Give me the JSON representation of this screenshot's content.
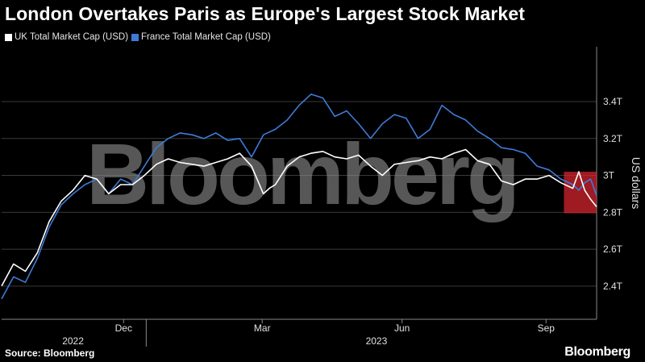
{
  "colors": {
    "background": "#000000",
    "uk": "#ffffff",
    "france": "#3e7bd8",
    "highlight": "#d9262e",
    "grid": "#3a3a3a",
    "axis_text": "#e0e0e0",
    "watermark": "#8c8c8c"
  },
  "footer": {
    "source": "Source: Bloomberg",
    "brand": "Bloomberg"
  },
  "chart_data": {
    "type": "line",
    "title": "London Overtakes Paris as Europe's Largest Stock Market",
    "ylabel": "US dollars",
    "ylim": [
      2.22,
      3.68
    ],
    "yticks": [
      {
        "value": 2.4,
        "label": "2.4T"
      },
      {
        "value": 2.6,
        "label": "2.6T"
      },
      {
        "value": 2.8,
        "label": "2.8T"
      },
      {
        "value": 3.0,
        "label": "3T"
      },
      {
        "value": 3.2,
        "label": "3.2T"
      },
      {
        "value": 3.4,
        "label": "3.4T"
      }
    ],
    "xlim": [
      0,
      100
    ],
    "xticks": [
      {
        "value": 20.5,
        "label": "Dec"
      },
      {
        "value": 43.8,
        "label": "Mar"
      },
      {
        "value": 67.3,
        "label": "Jun"
      },
      {
        "value": 91.5,
        "label": "Sep"
      }
    ],
    "year_labels": [
      {
        "value": 12,
        "label": "2022"
      },
      {
        "value": 63,
        "label": "2023"
      }
    ],
    "year_divider": 24.3,
    "highlight": {
      "x_start": 94.5,
      "x_end": 100,
      "y_start": 2.795,
      "y_end": 3.02
    },
    "watermark": "Bloomberg",
    "legend_position": "top-left",
    "series": [
      {
        "name": "UK Total Market Cap (USD)",
        "x": [
          0,
          2,
          4,
          6,
          8,
          10,
          12,
          14,
          16,
          18,
          20,
          22,
          24,
          26,
          28,
          30,
          32,
          34,
          36,
          38,
          40,
          42,
          44,
          45,
          46,
          48,
          50,
          52,
          54,
          56,
          58,
          60,
          62,
          64,
          66,
          68,
          70,
          72,
          74,
          76,
          78,
          80,
          82,
          84,
          86,
          88,
          90,
          92,
          94,
          96,
          97,
          98,
          99,
          100
        ],
        "values": [
          2.4,
          2.52,
          2.48,
          2.58,
          2.75,
          2.86,
          2.92,
          3.0,
          2.98,
          2.9,
          2.95,
          2.95,
          3.0,
          3.06,
          3.09,
          3.07,
          3.06,
          3.05,
          3.07,
          3.09,
          3.12,
          3.05,
          2.9,
          2.93,
          2.95,
          3.05,
          3.1,
          3.12,
          3.13,
          3.1,
          3.09,
          3.11,
          3.05,
          3.0,
          3.06,
          3.07,
          3.08,
          3.1,
          3.09,
          3.12,
          3.14,
          3.08,
          3.06,
          2.97,
          2.95,
          2.98,
          2.98,
          3.0,
          2.96,
          2.93,
          3.02,
          2.92,
          2.87,
          2.83
        ]
      },
      {
        "name": "France Total Market Cap (USD)",
        "x": [
          0,
          2,
          4,
          6,
          8,
          10,
          12,
          14,
          16,
          18,
          20,
          22,
          24,
          26,
          28,
          30,
          32,
          34,
          36,
          38,
          40,
          42,
          44,
          46,
          48,
          50,
          52,
          54,
          56,
          58,
          60,
          62,
          64,
          66,
          68,
          70,
          72,
          74,
          76,
          78,
          80,
          82,
          84,
          86,
          88,
          90,
          92,
          94,
          96,
          97,
          98,
          99,
          100
        ],
        "values": [
          2.33,
          2.45,
          2.42,
          2.55,
          2.72,
          2.84,
          2.9,
          2.95,
          2.98,
          2.9,
          2.98,
          2.95,
          3.05,
          3.15,
          3.2,
          3.23,
          3.22,
          3.2,
          3.23,
          3.19,
          3.2,
          3.1,
          3.22,
          3.25,
          3.3,
          3.38,
          3.44,
          3.42,
          3.32,
          3.35,
          3.28,
          3.2,
          3.28,
          3.33,
          3.31,
          3.2,
          3.25,
          3.38,
          3.33,
          3.3,
          3.24,
          3.2,
          3.15,
          3.14,
          3.12,
          3.05,
          3.03,
          2.98,
          2.95,
          2.92,
          2.96,
          2.98,
          2.89
        ]
      }
    ]
  }
}
